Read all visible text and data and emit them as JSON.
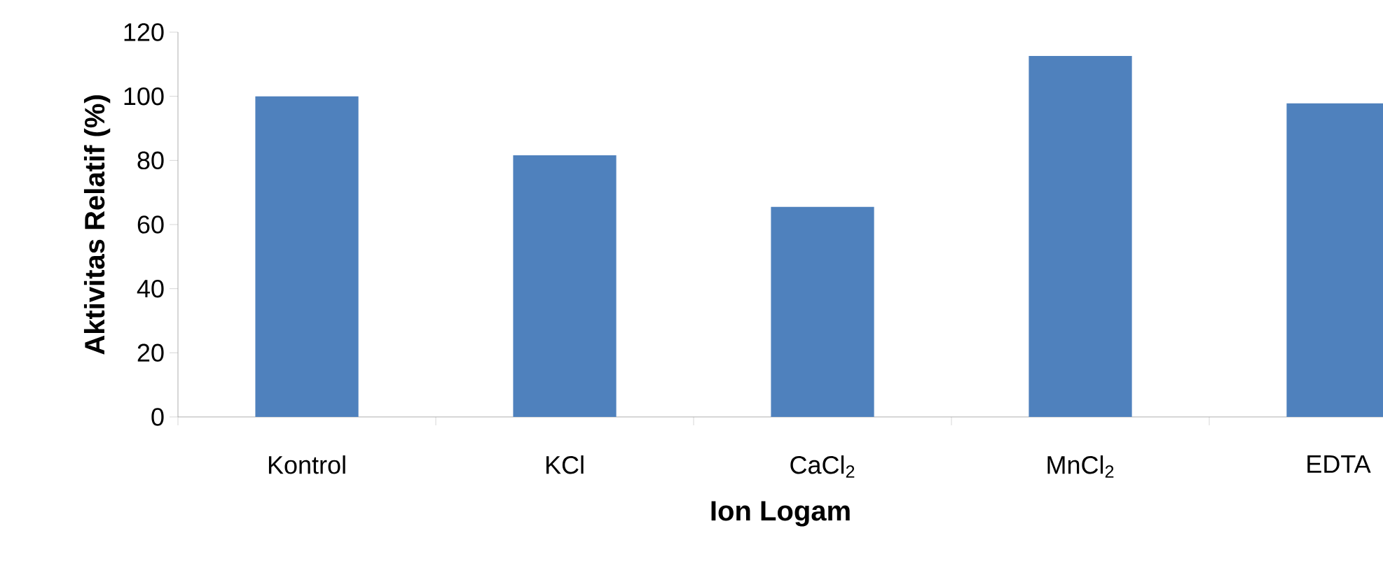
{
  "chart_data": {
    "type": "bar",
    "categories": [
      "Kontrol",
      "KCl",
      "CaCl$_{2}$",
      "MnCl$_{2}$",
      "EDTA"
    ],
    "values": [
      100,
      81.6,
      65.5,
      112.6,
      97.8
    ],
    "color": "#4f81bd",
    "xlabel": "Ion Logam",
    "ylabel": "Aktivitas Relatif (%)",
    "ylim": [
      0,
      120
    ],
    "yticks": [
      0,
      20,
      40,
      60,
      80,
      100,
      120
    ]
  }
}
